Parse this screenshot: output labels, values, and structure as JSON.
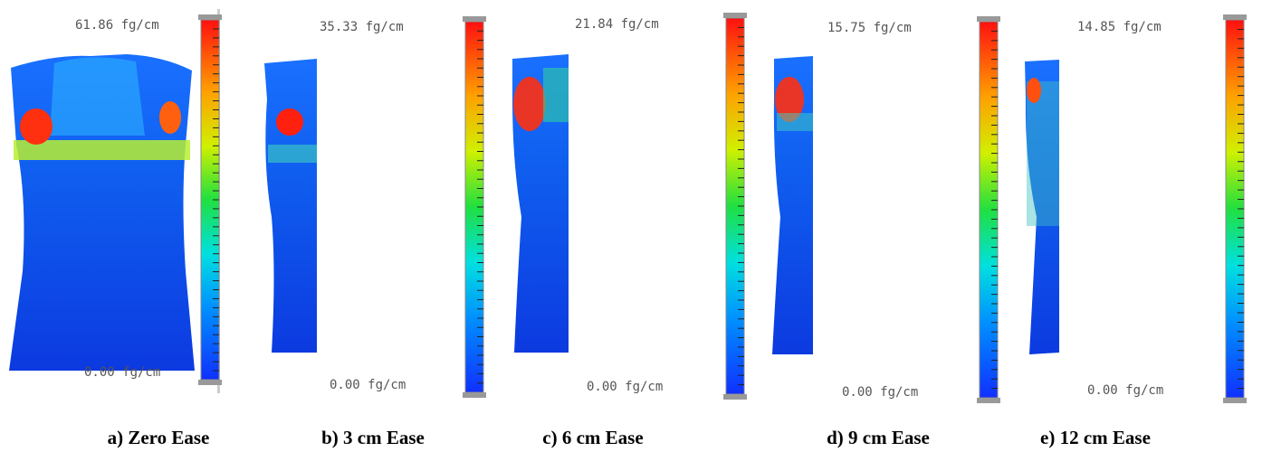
{
  "panels": [
    {
      "max_label": "61.86 fg/cm",
      "min_label": "0.00 fg/cm",
      "caption": "a) Zero Ease"
    },
    {
      "max_label": "35.33 fg/cm",
      "min_label": "0.00 fg/cm",
      "caption": "b) 3 cm Ease"
    },
    {
      "max_label": "21.84 fg/cm",
      "min_label": "0.00 fg/cm",
      "caption": "c) 6 cm Ease"
    },
    {
      "max_label": "15.75 fg/cm",
      "min_label": "0.00 fg/cm",
      "caption": "d) 9 cm Ease"
    },
    {
      "max_label": "14.85 fg/cm",
      "min_label": "0.00 fg/cm",
      "caption": "e) 12 cm Ease"
    }
  ]
}
